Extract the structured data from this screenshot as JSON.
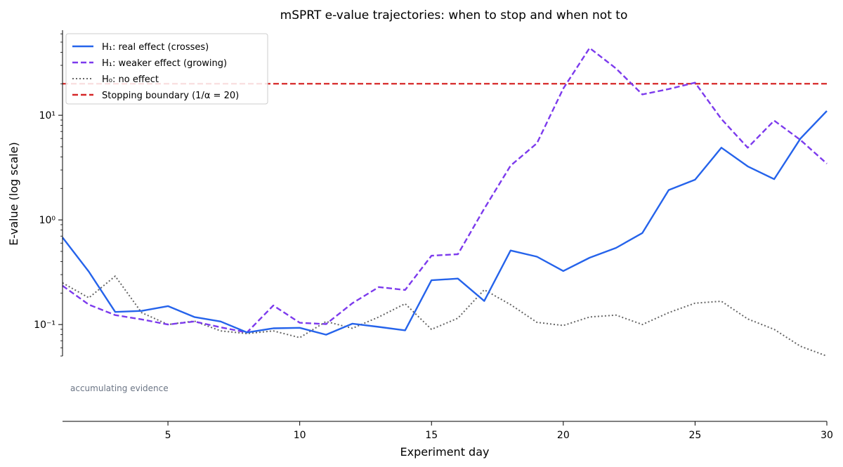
{
  "chart_data": {
    "type": "line",
    "title": "mSPRT e-value trajectories: when to stop and when not to",
    "xlabel": "Experiment day",
    "ylabel": "E-value (log scale)",
    "x_scale": "linear",
    "y_scale": "log",
    "xlim": [
      1,
      30
    ],
    "ylim": [
      0.05,
      65
    ],
    "x_ticks": [
      5,
      10,
      15,
      20,
      25,
      30
    ],
    "y_ticks": [
      0.1,
      1,
      10
    ],
    "y_tick_labels": [
      "10⁻¹",
      "10⁰",
      "10¹"
    ],
    "grid": false,
    "legend_position": "top-left",
    "x": [
      1,
      2,
      3,
      4,
      5,
      6,
      7,
      8,
      9,
      10,
      11,
      12,
      13,
      14,
      15,
      16,
      17,
      18,
      19,
      20,
      21,
      22,
      23,
      24,
      25,
      26,
      27,
      28,
      29,
      30
    ],
    "series": [
      {
        "name": "H₁: real effect (crosses)",
        "color": "#2563eb",
        "style": "solid",
        "values": [
          0.68,
          0.32,
          0.132,
          0.135,
          0.15,
          0.118,
          0.107,
          0.084,
          0.092,
          0.093,
          0.08,
          0.102,
          0.095,
          0.088,
          0.265,
          0.275,
          0.168,
          0.51,
          0.445,
          0.325,
          0.435,
          0.54,
          0.75,
          1.93,
          2.42,
          4.9,
          3.25,
          2.45,
          6.0,
          11.0
        ]
      },
      {
        "name": "H₁: weaker effect (growing)",
        "color": "#7c3aed",
        "style": "dashed",
        "values": [
          0.235,
          0.155,
          0.123,
          0.112,
          0.1,
          0.107,
          0.094,
          0.084,
          0.152,
          0.104,
          0.101,
          0.16,
          0.228,
          0.214,
          0.455,
          0.47,
          1.28,
          3.3,
          5.4,
          18.0,
          44.0,
          28.0,
          15.8,
          17.8,
          20.5,
          9.2,
          4.9,
          8.9,
          5.8,
          3.45
        ]
      },
      {
        "name": "H₀: no effect",
        "color": "#666666",
        "style": "dotted",
        "values": [
          0.25,
          0.18,
          0.29,
          0.13,
          0.1,
          0.108,
          0.087,
          0.082,
          0.087,
          0.075,
          0.107,
          0.092,
          0.118,
          0.158,
          0.09,
          0.115,
          0.215,
          0.155,
          0.105,
          0.098,
          0.118,
          0.123,
          0.1,
          0.13,
          0.16,
          0.167,
          0.113,
          0.09,
          0.062,
          0.05
        ]
      }
    ],
    "reference_lines": [
      {
        "name": "Stopping boundary (1/α = 20)",
        "y": 20,
        "color": "#d62728",
        "style": "dashed"
      }
    ],
    "annotations": [
      {
        "text": "accumulating evidence"
      }
    ]
  }
}
